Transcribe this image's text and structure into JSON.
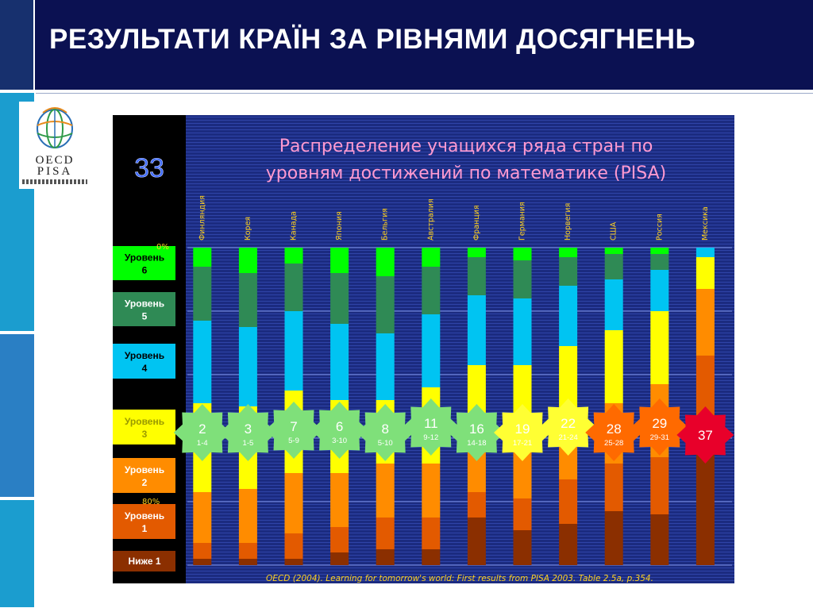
{
  "slide": {
    "title": "РЕЗУЛЬТАТИ КРАЇН ЗА РІВНЯМИ ДОСЯГНЕНЬ",
    "logo_line1": "OECD",
    "logo_line2": "PISA",
    "page_number": "33"
  },
  "colors": {
    "header_bg": "#0b1152",
    "chart_bg": "#1a2a7a",
    "level6": "#00ff00",
    "level5": "#2f8a55",
    "level4": "#00c4f2",
    "level3": "#ffff00",
    "level2": "#ff8c00",
    "level1": "#e35a00",
    "below1": "#8b2f00"
  },
  "chart_data": {
    "type": "bar",
    "stacked": true,
    "title": "Распределение учащихся ряда стран по уровням достижений по математике (PISA)",
    "source": "OECD (2004). Learning for tomorrow's world: First results from PISA 2003. Table 2.5a, p.354.",
    "categories": [
      "Финляндия",
      "Корея",
      "Канада",
      "Япония",
      "Бельгия",
      "Австралия",
      "Франция",
      "Германия",
      "Норвегия",
      "США",
      "Россия",
      "Мексика"
    ],
    "series": [
      {
        "name": "Уровень 6",
        "color": "#00ff00",
        "values": [
          6,
          8,
          5,
          8,
          9,
          6,
          3,
          4,
          3,
          2,
          2,
          0
        ]
      },
      {
        "name": "Уровень 5",
        "color": "#2f8a55",
        "values": [
          17,
          17,
          15,
          16,
          18,
          15,
          12,
          12,
          9,
          8,
          5,
          0
        ]
      },
      {
        "name": "Уровень 4",
        "color": "#00c4f2",
        "values": [
          26,
          25,
          25,
          24,
          21,
          23,
          22,
          21,
          19,
          16,
          13,
          3
        ]
      },
      {
        "name": "Уровень 3",
        "color": "#ffff00",
        "values": [
          28,
          26,
          26,
          23,
          20,
          24,
          25,
          23,
          24,
          23,
          23,
          10
        ]
      },
      {
        "name": "Уровень 2",
        "color": "#ff8c00",
        "values": [
          16,
          17,
          19,
          17,
          17,
          17,
          15,
          19,
          18,
          19,
          23,
          21
        ]
      },
      {
        "name": "Уровень 1",
        "color": "#e35a00",
        "values": [
          5,
          5,
          8,
          8,
          10,
          10,
          8,
          10,
          14,
          15,
          18,
          26
        ]
      },
      {
        "name": "Ниже 1",
        "color": "#8b2f00",
        "values": [
          2,
          2,
          2,
          4,
          5,
          5,
          15,
          11,
          13,
          17,
          16,
          40
        ]
      }
    ],
    "ranks": [
      {
        "rank": "2",
        "range": "1-4"
      },
      {
        "rank": "3",
        "range": "1-5"
      },
      {
        "rank": "7",
        "range": "5-9"
      },
      {
        "rank": "6",
        "range": "3-10"
      },
      {
        "rank": "8",
        "range": "5-10"
      },
      {
        "rank": "11",
        "range": "9-12"
      },
      {
        "rank": "16",
        "range": "14-18"
      },
      {
        "rank": "19",
        "range": "17-21"
      },
      {
        "rank": "22",
        "range": "21-24"
      },
      {
        "rank": "28",
        "range": "25-28"
      },
      {
        "rank": "29",
        "range": "29-31"
      },
      {
        "rank": "37",
        "range": ""
      }
    ],
    "legend": [
      {
        "label": "Уровень 6",
        "color": "#00ff00"
      },
      {
        "label": "Уровень 5",
        "color": "#2f8a55"
      },
      {
        "label": "Уровень 4",
        "color": "#00c4f2"
      },
      {
        "label": "Уровень 3",
        "color": "#ffff00"
      },
      {
        "label": "Уровень 2",
        "color": "#ff8c00"
      },
      {
        "label": "Уровень 1",
        "color": "#e35a00"
      },
      {
        "label": "Ниже 1",
        "color": "#8b2f00"
      }
    ],
    "axis_fragments": [
      "0%",
      "80%"
    ],
    "ylim": [
      0,
      100
    ],
    "legend_position": "left",
    "grid": true
  }
}
